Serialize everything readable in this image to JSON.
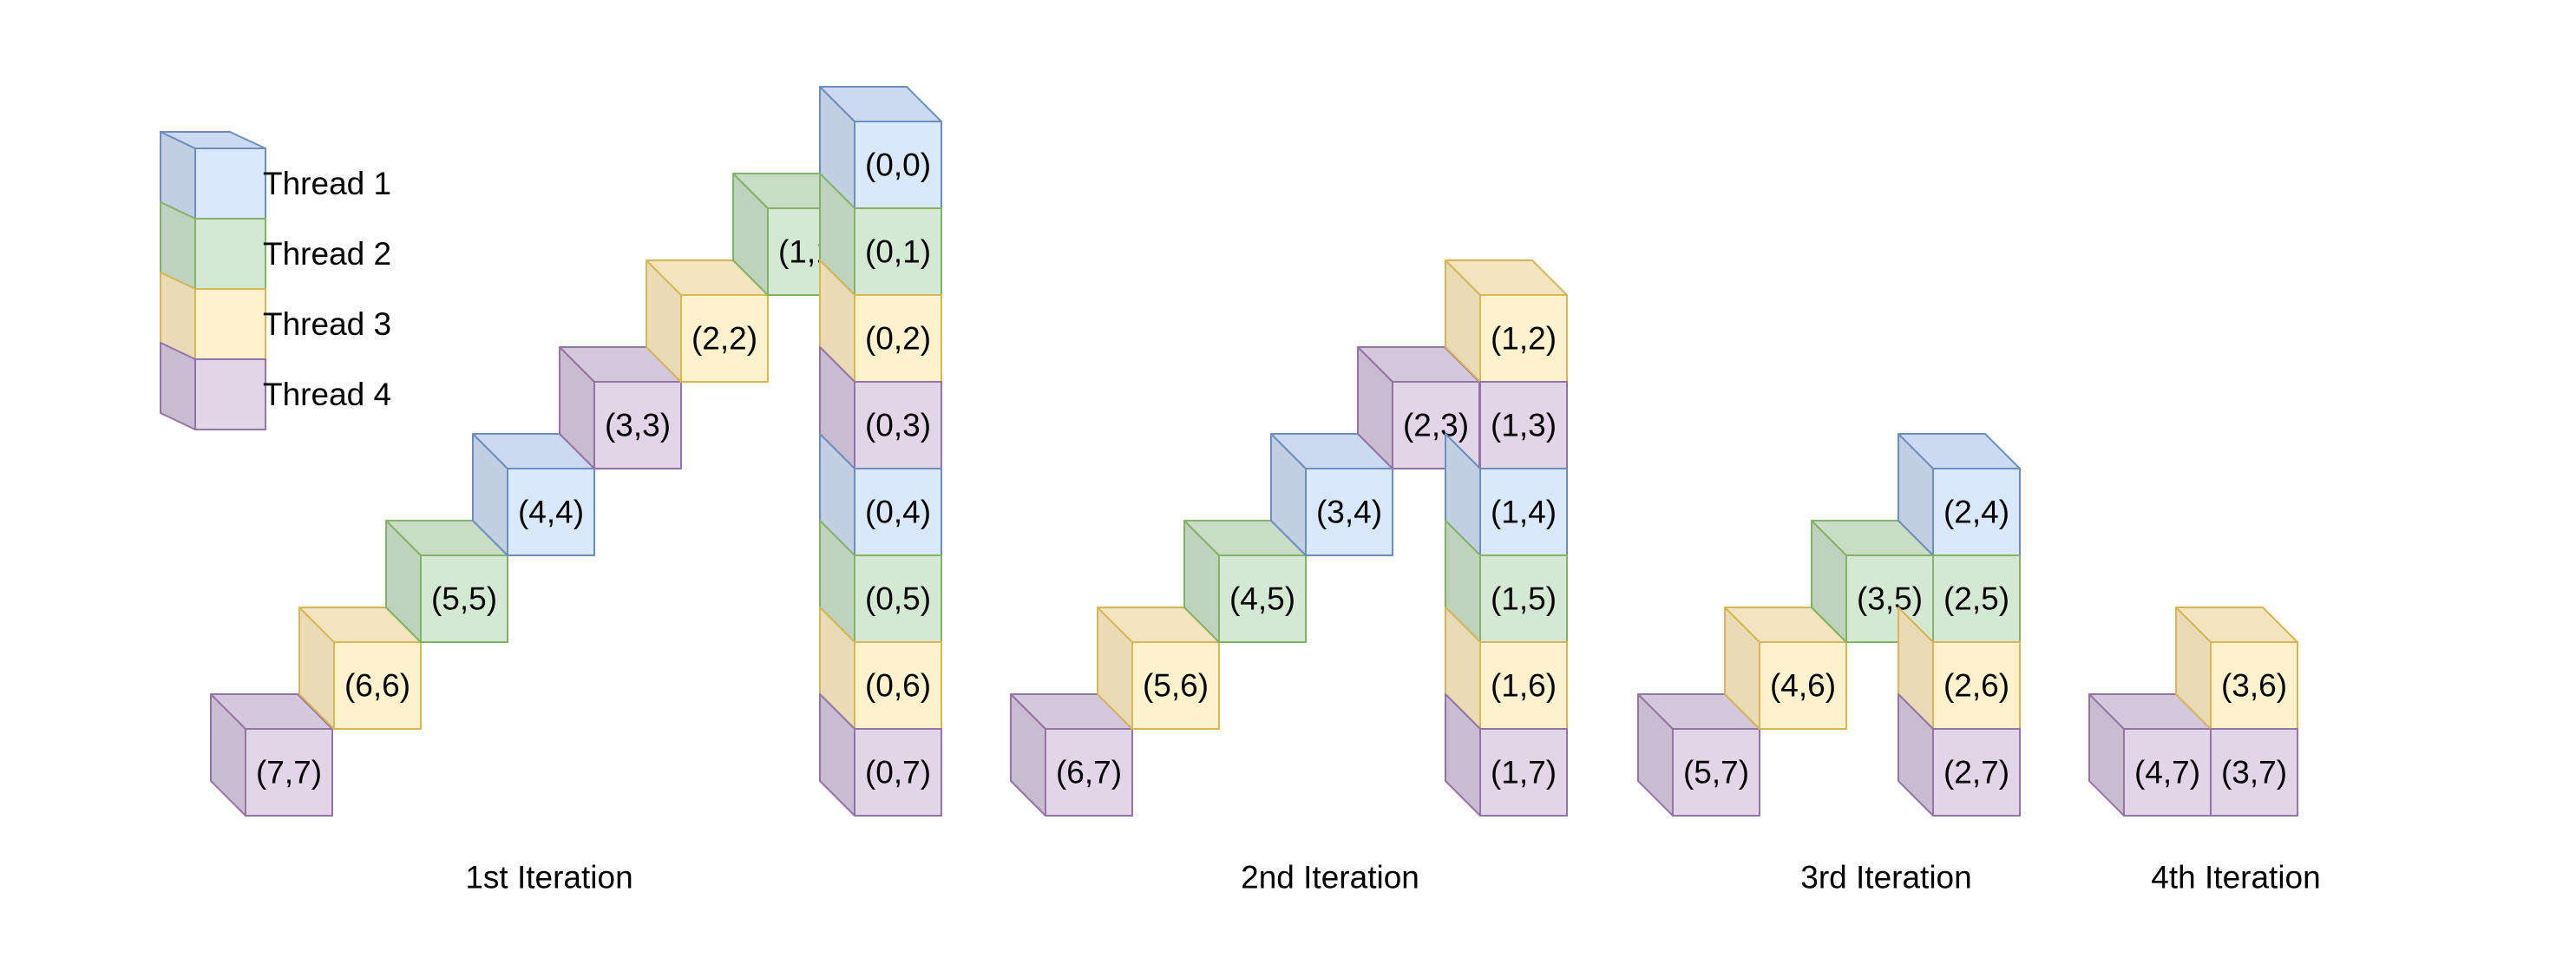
{
  "threads": [
    {
      "id": 1,
      "label": "Thread 1",
      "colors": {
        "front": "#dae8fc",
        "side": "#c2cfe2",
        "top": "#cbdaf0",
        "stroke": "#6c8ebf"
      }
    },
    {
      "id": 2,
      "label": "Thread 2",
      "colors": {
        "front": "#d5e8d4",
        "side": "#bfd2bd",
        "top": "#c8dcc6",
        "stroke": "#82b366"
      }
    },
    {
      "id": 3,
      "label": "Thread 3",
      "colors": {
        "front": "#fff2cc",
        "side": "#e8dbb5",
        "top": "#f2e4bf",
        "stroke": "#d6b656"
      }
    },
    {
      "id": 4,
      "label": "Thread 4",
      "colors": {
        "front": "#e1d5e7",
        "side": "#c9bcd1",
        "top": "#d5c8dc",
        "stroke": "#9673a6"
      }
    }
  ],
  "iterations": [
    {
      "label": "1st Iteration",
      "cells": [
        {
          "text": "(7,7)",
          "thread": 4
        },
        {
          "text": "(6,6)",
          "thread": 3
        },
        {
          "text": "(5,5)",
          "thread": 2
        },
        {
          "text": "(4,4)",
          "thread": 1
        },
        {
          "text": "(3,3)",
          "thread": 4
        },
        {
          "text": "(2,2)",
          "thread": 3
        },
        {
          "text": "(1,1)",
          "thread": 2
        },
        {
          "text": "(0,0)",
          "thread": 1
        },
        {
          "text": "(0,1)",
          "thread": 2
        },
        {
          "text": "(0,2)",
          "thread": 3
        },
        {
          "text": "(0,3)",
          "thread": 4
        },
        {
          "text": "(0,4)",
          "thread": 1
        },
        {
          "text": "(0,5)",
          "thread": 2
        },
        {
          "text": "(0,6)",
          "thread": 3
        },
        {
          "text": "(0,7)",
          "thread": 4
        }
      ]
    },
    {
      "label": "2nd Iteration",
      "cells": [
        {
          "text": "(6,7)",
          "thread": 4
        },
        {
          "text": "(5,6)",
          "thread": 3
        },
        {
          "text": "(4,5)",
          "thread": 2
        },
        {
          "text": "(3,4)",
          "thread": 1
        },
        {
          "text": "(2,3)",
          "thread": 4
        },
        {
          "text": "(1,2)",
          "thread": 3
        },
        {
          "text": "(1,3)",
          "thread": 4
        },
        {
          "text": "(1,4)",
          "thread": 1
        },
        {
          "text": "(1,5)",
          "thread": 2
        },
        {
          "text": "(1,6)",
          "thread": 3
        },
        {
          "text": "(1,7)",
          "thread": 4
        }
      ]
    },
    {
      "label": "3rd Iteration",
      "cells": [
        {
          "text": "(5,7)",
          "thread": 4
        },
        {
          "text": "(4,6)",
          "thread": 3
        },
        {
          "text": "(3,5)",
          "thread": 2
        },
        {
          "text": "(2,4)",
          "thread": 1
        },
        {
          "text": "(2,5)",
          "thread": 2
        },
        {
          "text": "(2,6)",
          "thread": 3
        },
        {
          "text": "(2,7)",
          "thread": 4
        }
      ]
    },
    {
      "label": "4th Iteration",
      "cells": [
        {
          "text": "(4,7)",
          "thread": 4
        },
        {
          "text": "(3,6)",
          "thread": 3
        },
        {
          "text": "(3,7)",
          "thread": 4
        }
      ]
    }
  ]
}
